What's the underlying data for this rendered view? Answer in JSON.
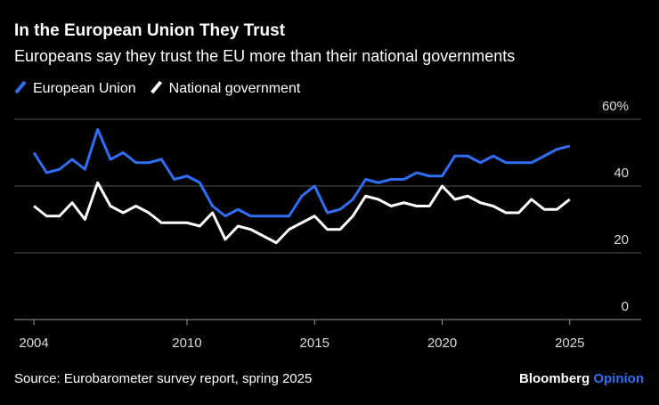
{
  "chart_data": {
    "type": "line",
    "title": "In the European Union They Trust",
    "subtitle": "Europeans say they trust the EU more than their national governments",
    "source": "Source: Eurobarometer survey report, spring 2025",
    "brand": "Bloomberg",
    "brand_suffix": "Opinion",
    "x": [
      2004,
      2004.5,
      2005,
      2005.5,
      2006,
      2006.5,
      2007,
      2007.5,
      2008,
      2008.5,
      2009,
      2009.5,
      2010,
      2010.5,
      2011,
      2011.5,
      2012,
      2012.5,
      2013,
      2013.5,
      2014,
      2014.5,
      2015,
      2015.5,
      2016,
      2016.5,
      2017,
      2017.5,
      2018,
      2018.5,
      2019,
      2019.5,
      2020,
      2020.5,
      2021,
      2021.5,
      2022,
      2022.5,
      2023,
      2023.5,
      2024,
      2024.5,
      2025
    ],
    "series": [
      {
        "name": "European Union",
        "color": "#2f6ef5",
        "values": [
          50,
          44,
          45,
          48,
          45,
          57,
          48,
          50,
          47,
          47,
          48,
          42,
          43,
          41,
          34,
          31,
          33,
          31,
          31,
          31,
          31,
          37,
          40,
          32,
          33,
          36,
          42,
          41,
          42,
          42,
          44,
          43,
          43,
          49,
          49,
          47,
          49,
          47,
          47,
          47,
          49,
          51,
          52
        ]
      },
      {
        "name": "National government",
        "color": "#ffffff",
        "values": [
          34,
          31,
          31,
          35,
          30,
          41,
          34,
          32,
          34,
          32,
          29,
          29,
          29,
          28,
          32,
          24,
          28,
          27,
          25,
          23,
          27,
          29,
          31,
          27,
          27,
          31,
          37,
          36,
          34,
          35,
          34,
          34,
          40,
          36,
          37,
          35,
          34,
          32,
          32,
          36,
          33,
          33,
          36
        ]
      }
    ],
    "xlim": [
      2003.23,
      2027.8
    ],
    "xticks": [
      2004,
      2010,
      2015,
      2020,
      2025
    ],
    "ylim": [
      0,
      60
    ],
    "yticks": [
      0,
      20,
      40,
      {
        "value": 60,
        "label": "60%"
      }
    ],
    "grid": true,
    "legend": "top-left"
  }
}
